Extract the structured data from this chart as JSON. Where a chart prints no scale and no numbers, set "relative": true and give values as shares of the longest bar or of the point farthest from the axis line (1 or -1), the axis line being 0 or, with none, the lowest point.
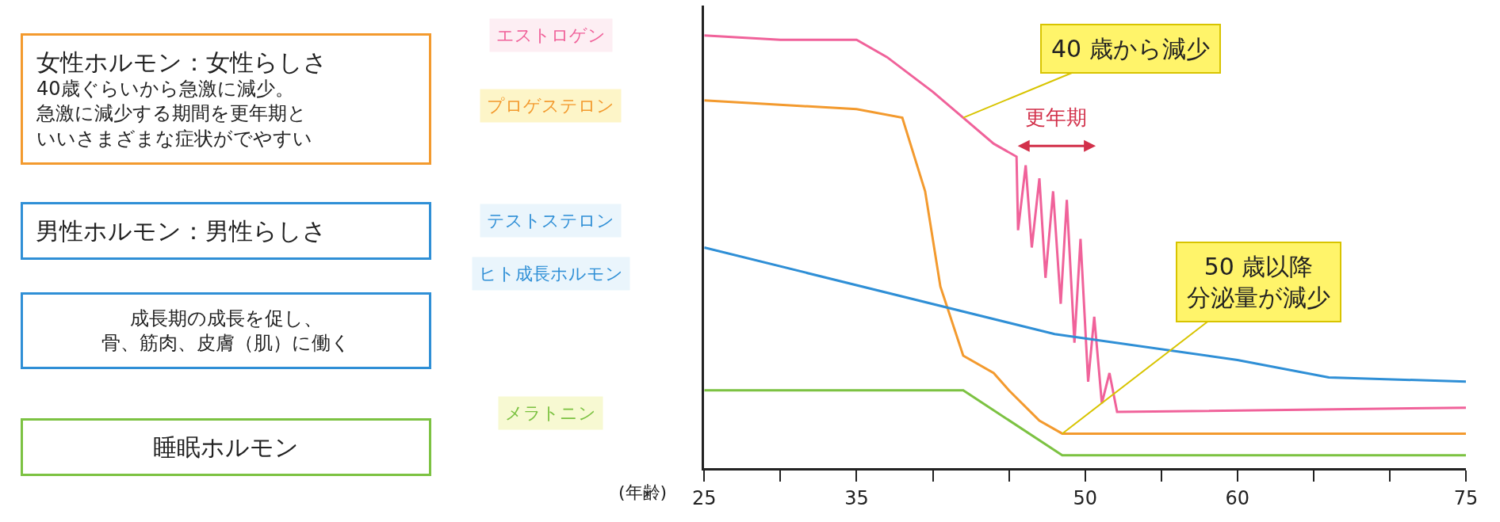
{
  "chart_data": {
    "type": "line",
    "relative": true,
    "xlabel": "(年齢)",
    "xlim": [
      25,
      75
    ],
    "xticks": [
      25,
      {
        "value": 30,
        "label": null
      },
      35,
      {
        "value": 40,
        "label": null
      },
      {
        "value": 45,
        "label": null
      },
      50,
      {
        "value": 55,
        "label": null
      },
      60,
      {
        "value": 65,
        "label": null
      },
      {
        "value": 70,
        "label": null
      },
      75
    ],
    "series": [
      {
        "name": "エストロゲン",
        "color": "#f0629a",
        "x": [
          25,
          30,
          35,
          37,
          40,
          42,
          44,
          45.5,
          45.6,
          46.1,
          46.5,
          47.0,
          47.4,
          47.9,
          48.4,
          48.8,
          49.3,
          49.7,
          50.2,
          50.6,
          51.1,
          51.6,
          52.1,
          75
        ],
        "values": [
          1.0,
          0.99,
          0.99,
          0.95,
          0.87,
          0.81,
          0.75,
          0.72,
          0.55,
          0.7,
          0.51,
          0.67,
          0.44,
          0.64,
          0.38,
          0.62,
          0.29,
          0.53,
          0.2,
          0.35,
          0.15,
          0.22,
          0.13,
          0.14
        ]
      },
      {
        "name": "プロゲステロン",
        "color": "#f39a2e",
        "x": [
          25,
          35,
          38,
          39.5,
          40.5,
          42,
          44,
          45,
          47,
          48.5,
          75
        ],
        "values": [
          0.85,
          0.83,
          0.81,
          0.64,
          0.42,
          0.26,
          0.22,
          0.18,
          0.11,
          0.08,
          0.08
        ]
      },
      {
        "name": "テストステロン",
        "color": "#2f8fd6",
        "x": [
          25,
          48,
          60,
          66,
          75
        ],
        "values": [
          0.51,
          0.31,
          0.25,
          0.21,
          0.2
        ]
      },
      {
        "name": "メラトニン",
        "color": "#7cc242",
        "x": [
          25,
          42,
          48.5,
          75
        ],
        "values": [
          0.18,
          0.18,
          0.03,
          0.03
        ]
      }
    ],
    "annotations": [
      "ヒト成長ホルモン",
      "女性ホルモン：女性らしさ",
      "40歳ぐらいから急激に減少。",
      "急激に減少する期間を更年期と",
      "いいさまざまな症状がでやすい",
      "男性ホルモン：男性らしさ",
      "成長期の成長を促し、",
      "骨、筋肉、皮膚（肌）に働く",
      "睡眠ホルモン",
      {
        "text": "40 歳から減少",
        "x": 42,
        "y": 0.81
      },
      "50 歳以降",
      "分泌量が減少",
      "更年期"
    ],
    "legend": false
  }
}
